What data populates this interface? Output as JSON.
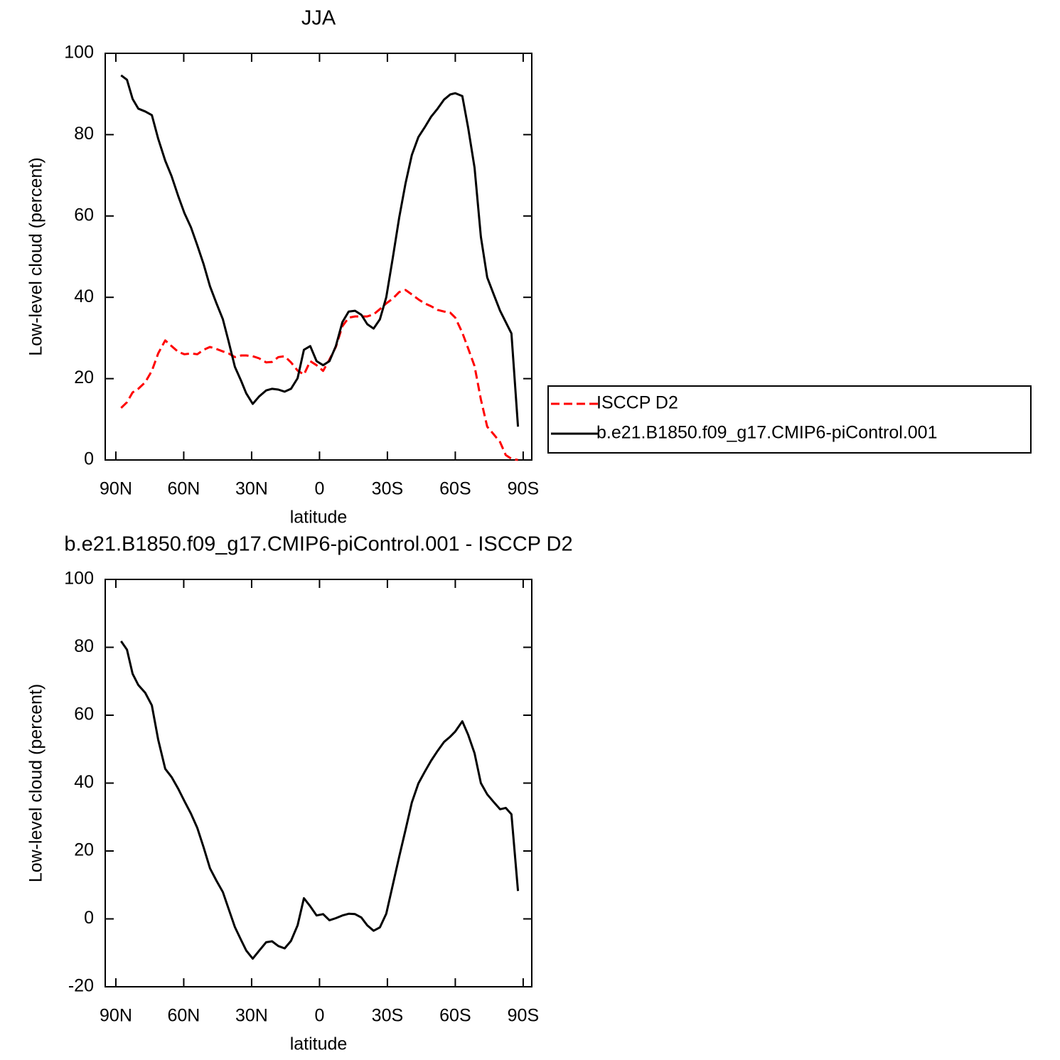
{
  "chart_data": [
    {
      "type": "line",
      "title": "JJA",
      "xlabel": "latitude",
      "ylabel": "Low-level cloud (percent)",
      "x": [
        87.7,
        85.1,
        82.6,
        80.1,
        77.0,
        74.1,
        71.3,
        68.2,
        65.4,
        62.5,
        59.7,
        56.8,
        54.0,
        51.2,
        48.4,
        45.6,
        42.7,
        40.2,
        37.4,
        34.6,
        32.4,
        29.5,
        26.7,
        23.6,
        21.0,
        18.2,
        15.4,
        12.6,
        9.7,
        6.9,
        4.1,
        1.3,
        -1.6,
        -4.4,
        -7.2,
        -10.1,
        -12.9,
        -15.7,
        -18.5,
        -21.1,
        -23.9,
        -26.7,
        -29.5,
        -32.4,
        -35.2,
        -38.0,
        -40.8,
        -43.7,
        -46.5,
        -49.3,
        -52.2,
        -55.0,
        -57.8,
        -60.0,
        -63.1,
        -65.7,
        -68.5,
        -71.3,
        -74.1,
        -77.0,
        -79.8,
        -82.3,
        -84.8,
        -87.7
      ],
      "series": [
        {
          "name": "ISCCP D2",
          "color": "#ff0000",
          "dashed": true,
          "values": [
            12.8,
            14.2,
            16.6,
            17.5,
            19.1,
            21.9,
            26.2,
            29.4,
            28.0,
            26.6,
            26.0,
            26.2,
            26.0,
            27.1,
            27.8,
            27.3,
            26.7,
            26.2,
            25.3,
            25.7,
            25.7,
            25.5,
            25.0,
            24.0,
            24.1,
            25.3,
            25.5,
            24.0,
            22.0,
            21.0,
            24.3,
            23.3,
            21.9,
            24.7,
            27.8,
            32.9,
            35.0,
            35.3,
            35.3,
            35.3,
            35.8,
            37.1,
            38.5,
            39.7,
            41.3,
            41.8,
            40.7,
            39.5,
            38.5,
            37.8,
            36.9,
            36.5,
            36.2,
            35.0,
            31.3,
            27.4,
            23.1,
            14.9,
            8.2,
            6.3,
            4.4,
            1.2,
            0.3,
            0
          ]
        },
        {
          "name": "b.e21.B1850.f09_g17.CMIP6-piControl.001",
          "color": "#000000",
          "dashed": false,
          "values": [
            94.6,
            93.5,
            88.8,
            86.4,
            85.7,
            84.8,
            79.0,
            73.6,
            69.8,
            65.0,
            60.7,
            57.2,
            52.8,
            48.1,
            42.7,
            38.6,
            34.6,
            29.2,
            22.9,
            19.4,
            16.4,
            13.8,
            15.6,
            17.1,
            17.5,
            17.3,
            16.8,
            17.5,
            20.1,
            27.1,
            28.0,
            24.3,
            23.3,
            24.3,
            28.0,
            33.9,
            36.5,
            36.7,
            35.7,
            33.4,
            32.3,
            34.6,
            40.0,
            49.8,
            59.6,
            68.0,
            75.0,
            79.4,
            81.8,
            84.4,
            86.4,
            88.6,
            89.9,
            90.2,
            89.5,
            81.6,
            71.9,
            54.9,
            44.9,
            40.7,
            36.7,
            33.9,
            31.1,
            8.2
          ]
        }
      ],
      "xlim": [
        94.7,
        -93.8
      ],
      "xticks": [
        {
          "value": 90,
          "label": "90N"
        },
        {
          "value": 60,
          "label": "60N"
        },
        {
          "value": 30,
          "label": "30N"
        },
        0,
        {
          "value": -30,
          "label": "30S"
        },
        {
          "value": -60,
          "label": "60S"
        },
        {
          "value": -90,
          "label": "90S"
        }
      ],
      "ylim": [
        0,
        100
      ],
      "yticks": [
        0,
        20,
        40,
        60,
        80,
        100
      ],
      "legend": "right"
    },
    {
      "type": "line",
      "title": "b.e21.B1850.f09_g17.CMIP6-piControl.001 - ISCCP D2",
      "xlabel": "latitude",
      "ylabel": "Low-level cloud (percent)",
      "x": [
        87.7,
        85.1,
        82.6,
        80.1,
        77.0,
        74.1,
        71.3,
        68.2,
        65.4,
        62.5,
        59.7,
        56.8,
        54.0,
        51.2,
        48.4,
        45.6,
        42.7,
        40.2,
        37.4,
        34.6,
        32.4,
        29.5,
        26.7,
        23.6,
        21.0,
        18.2,
        15.4,
        12.6,
        9.7,
        6.9,
        4.1,
        1.3,
        -1.6,
        -4.4,
        -7.2,
        -10.1,
        -12.9,
        -15.7,
        -18.5,
        -21.1,
        -23.9,
        -26.7,
        -29.5,
        -32.4,
        -35.2,
        -38.0,
        -40.8,
        -43.7,
        -46.5,
        -49.3,
        -52.2,
        -55.0,
        -57.8,
        -60.0,
        -63.1,
        -65.7,
        -68.5,
        -71.3,
        -74.1,
        -77.0,
        -79.8,
        -82.3,
        -84.8,
        -87.7
      ],
      "values": [
        81.8,
        79.3,
        72.2,
        68.9,
        66.6,
        62.9,
        52.8,
        44.2,
        41.8,
        38.4,
        34.7,
        31.0,
        26.8,
        21.0,
        14.9,
        11.3,
        7.9,
        3.0,
        -2.4,
        -6.3,
        -9.3,
        -11.7,
        -9.4,
        -6.9,
        -6.6,
        -8.0,
        -8.7,
        -6.5,
        -1.9,
        6.1,
        3.7,
        1.0,
        1.4,
        -0.4,
        0.2,
        1.0,
        1.5,
        1.4,
        0.4,
        -1.9,
        -3.5,
        -2.5,
        1.5,
        10.1,
        18.3,
        26.2,
        34.3,
        39.9,
        43.3,
        46.6,
        49.5,
        52.1,
        53.7,
        55.2,
        58.2,
        54.2,
        48.8,
        40.0,
        36.7,
        34.4,
        32.3,
        32.7,
        30.8,
        8.2
      ],
      "color": "#000000",
      "xlim": [
        94.7,
        -93.8
      ],
      "xticks": [
        {
          "value": 90,
          "label": "90N"
        },
        {
          "value": 60,
          "label": "60N"
        },
        {
          "value": 30,
          "label": "30N"
        },
        0,
        {
          "value": -30,
          "label": "30S"
        },
        {
          "value": -60,
          "label": "60S"
        },
        {
          "value": -90,
          "label": "90S"
        }
      ],
      "ylim": [
        -20,
        100
      ],
      "yticks": [
        -20,
        0,
        20,
        40,
        60,
        80,
        100
      ]
    }
  ]
}
